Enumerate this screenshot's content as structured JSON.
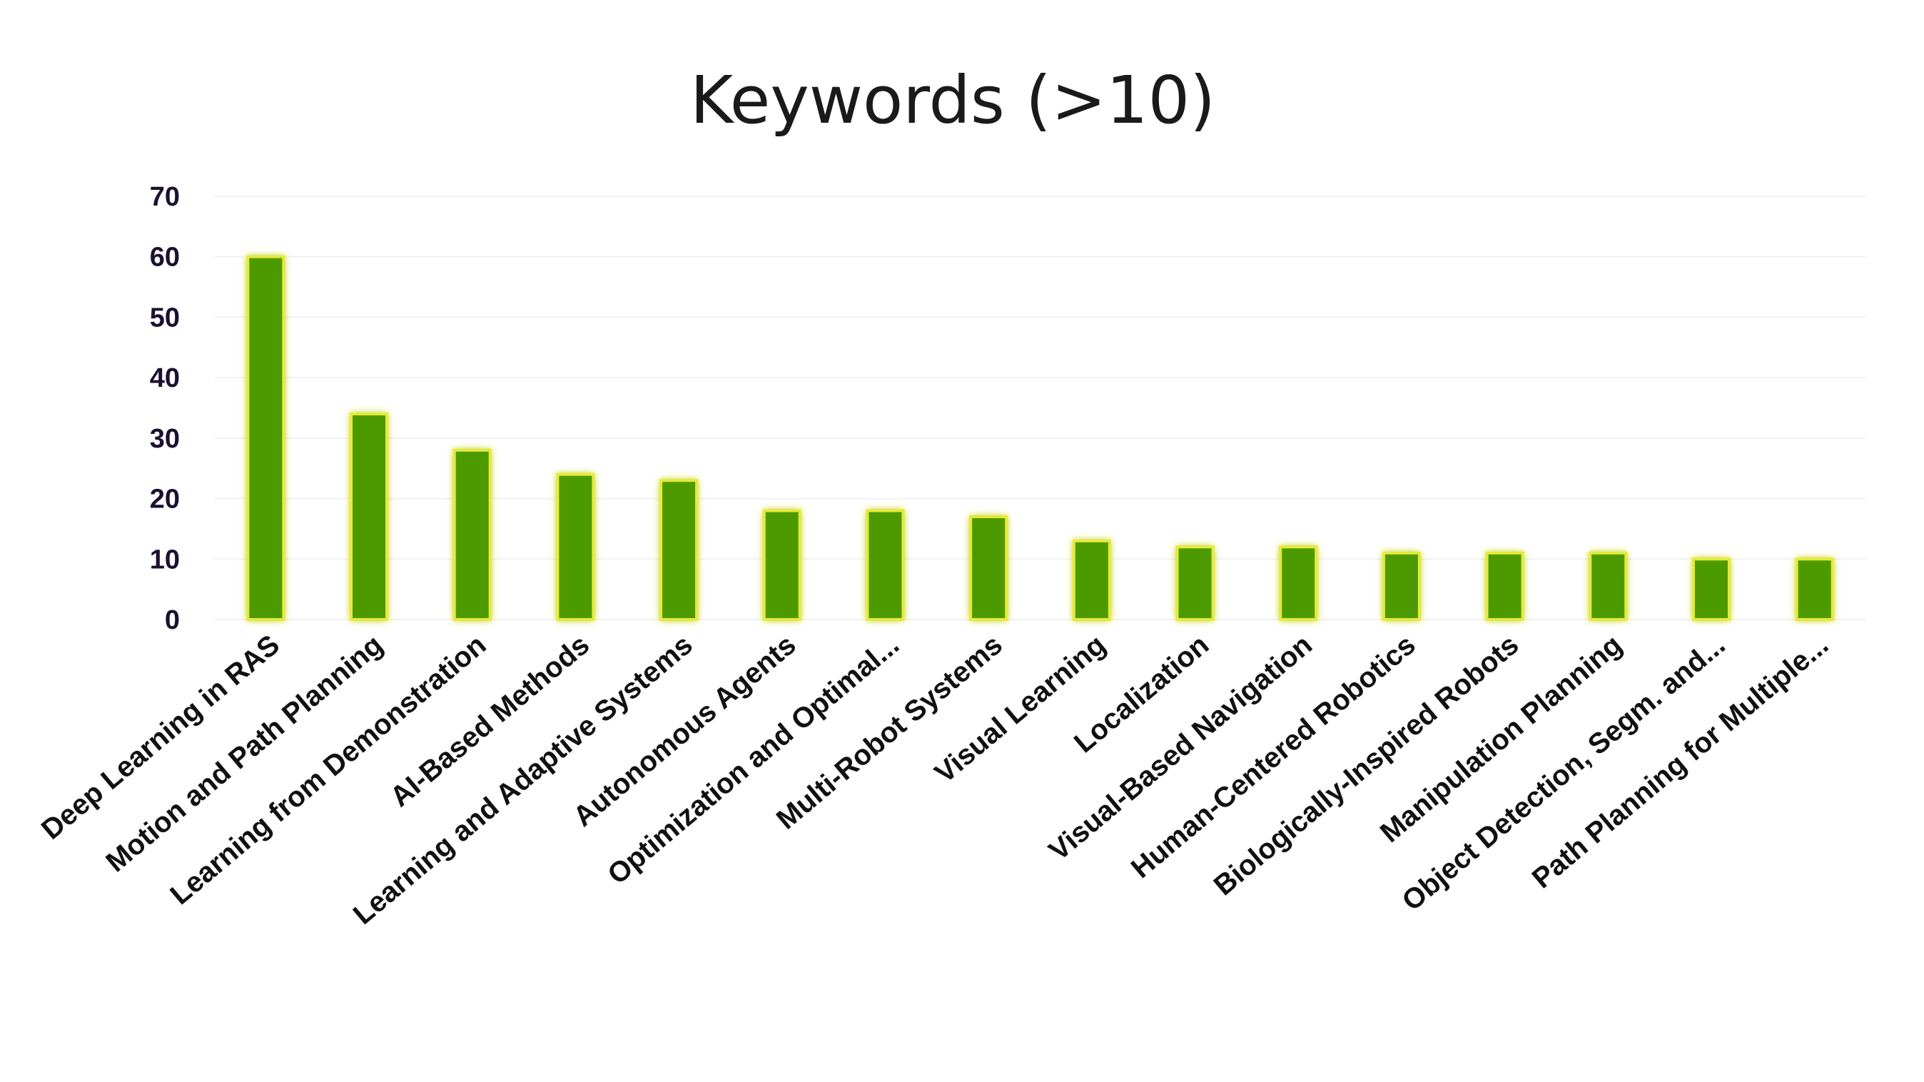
{
  "chart_data": {
    "type": "bar",
    "title": "Keywords (>10)",
    "xlabel": "",
    "ylabel": "",
    "ylim": [
      0,
      70
    ],
    "yticks": [
      0,
      10,
      20,
      30,
      40,
      50,
      60,
      70
    ],
    "grid": true,
    "legend": "none",
    "categories": [
      "Deep Learning in RAS",
      "Motion and Path Planning",
      "Learning from Demonstration",
      "AI-Based Methods",
      "Learning and Adaptive Systems",
      "Autonomous Agents",
      "Optimization and Optimal...",
      "Multi-Robot Systems",
      "Visual Learning",
      "Localization",
      "Visual-Based Navigation",
      "Human-Centered Robotics",
      "Biologically-Inspired Robots",
      "Manipulation Planning",
      "Object Detection, Segm. and...",
      "Path Planning for Multiple..."
    ],
    "values": [
      60,
      34,
      28,
      24,
      23,
      18,
      18,
      17,
      13,
      12,
      12,
      11,
      11,
      11,
      10,
      10
    ],
    "colors": {
      "bar": "#4e9a06",
      "bar_glow": "#e6ea3a"
    }
  }
}
